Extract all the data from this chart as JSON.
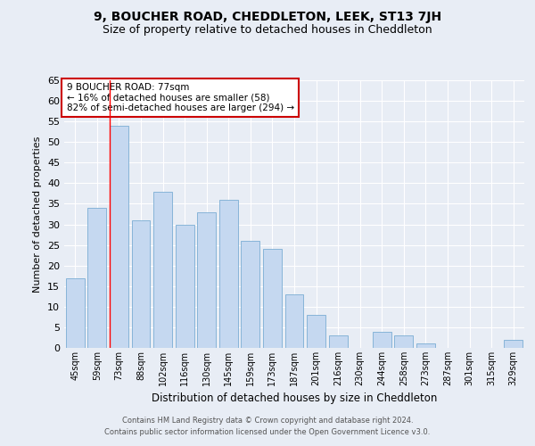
{
  "title": "9, BOUCHER ROAD, CHEDDLETON, LEEK, ST13 7JH",
  "subtitle": "Size of property relative to detached houses in Cheddleton",
  "xlabel": "Distribution of detached houses by size in Cheddleton",
  "ylabel": "Number of detached properties",
  "categories": [
    "45sqm",
    "59sqm",
    "73sqm",
    "88sqm",
    "102sqm",
    "116sqm",
    "130sqm",
    "145sqm",
    "159sqm",
    "173sqm",
    "187sqm",
    "201sqm",
    "216sqm",
    "230sqm",
    "244sqm",
    "258sqm",
    "273sqm",
    "287sqm",
    "301sqm",
    "315sqm",
    "329sqm"
  ],
  "values": [
    17,
    34,
    54,
    31,
    38,
    30,
    33,
    36,
    26,
    24,
    13,
    8,
    3,
    0,
    4,
    3,
    1,
    0,
    0,
    0,
    2
  ],
  "bar_color": "#c5d8f0",
  "bar_edge_color": "#7aadd4",
  "red_line_index": 2,
  "annotation_title": "9 BOUCHER ROAD: 77sqm",
  "annotation_line1": "← 16% of detached houses are smaller (58)",
  "annotation_line2": "82% of semi-detached houses are larger (294) →",
  "ylim": [
    0,
    65
  ],
  "yticks": [
    0,
    5,
    10,
    15,
    20,
    25,
    30,
    35,
    40,
    45,
    50,
    55,
    60,
    65
  ],
  "footnote1": "Contains HM Land Registry data © Crown copyright and database right 2024.",
  "footnote2": "Contains public sector information licensed under the Open Government Licence v3.0.",
  "bg_color": "#e8edf5",
  "plot_bg_color": "#e8edf5",
  "grid_color": "#ffffff",
  "title_fontsize": 10,
  "subtitle_fontsize": 9,
  "annotation_box_color": "#ffffff",
  "annotation_box_edge": "#cc0000"
}
